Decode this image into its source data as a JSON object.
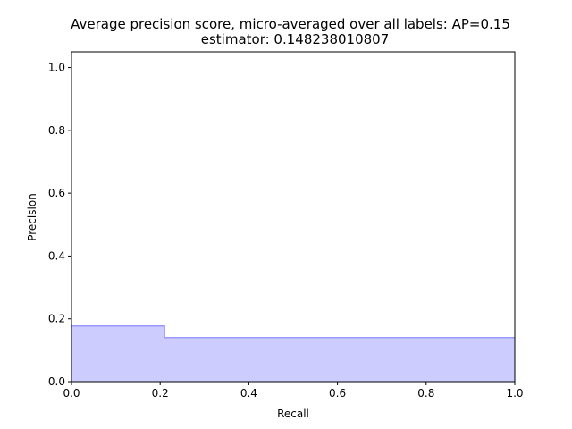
{
  "chart_data": {
    "type": "area",
    "title": "Average precision score, micro-averaged over all labels: AP=0.15",
    "subtitle": "estimator: 0.148238010807",
    "xlabel": "Recall",
    "ylabel": "Precision",
    "xlim": [
      0.0,
      1.0
    ],
    "ylim": [
      0.0,
      1.05
    ],
    "x_ticks": [
      "0.0",
      "0.2",
      "0.4",
      "0.6",
      "0.8",
      "1.0"
    ],
    "y_ticks": [
      "0.0",
      "0.2",
      "0.4",
      "0.6",
      "0.8",
      "1.0"
    ],
    "grid": false,
    "step": "post",
    "colors": {
      "fill": "#ccccff",
      "line": "#9999ff"
    },
    "series": [
      {
        "points": [
          {
            "x": 0.0,
            "y": 0.177
          },
          {
            "x": 0.21,
            "y": 0.177
          },
          {
            "x": 0.21,
            "y": 0.14
          },
          {
            "x": 1.0,
            "y": 0.14
          }
        ]
      }
    ]
  }
}
